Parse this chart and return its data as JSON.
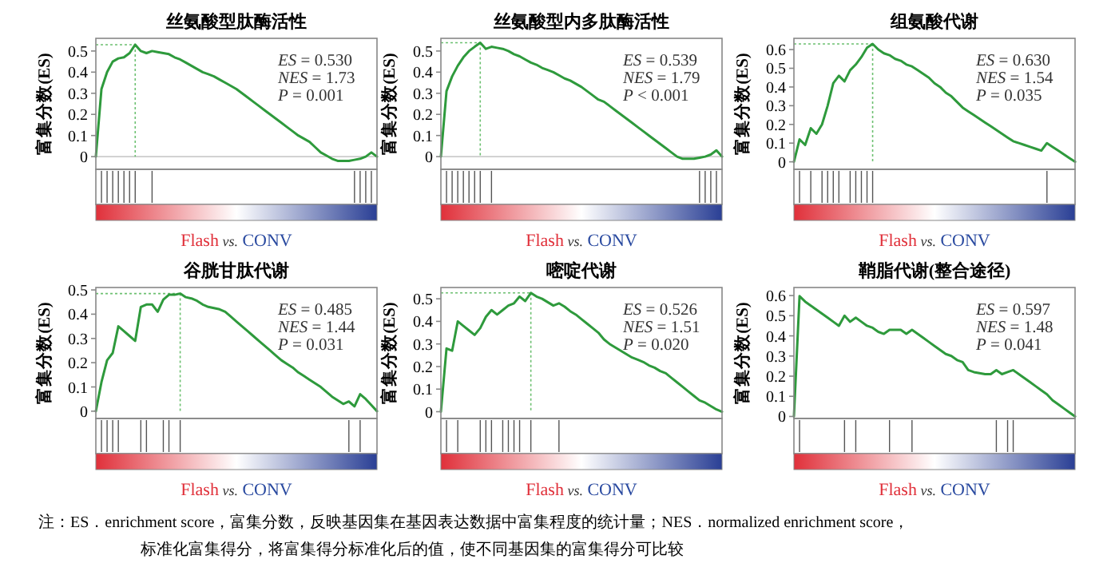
{
  "chart_data": [
    {
      "type": "line",
      "title": "丝氨酸型肽酶活性",
      "ylabel": "富集分数(ES)",
      "xlabel": "Flash vs. CONV",
      "ylim": [
        -0.06,
        0.56
      ],
      "yticks": [
        0,
        0.1,
        0.2,
        0.3,
        0.4,
        0.5
      ],
      "tick_labels": "y",
      "categories": [
        null,
        null,
        null,
        null,
        null,
        null,
        null,
        null,
        null,
        null,
        null,
        null,
        null,
        null,
        null,
        null,
        null,
        null,
        null,
        null,
        null,
        null,
        null,
        null,
        null,
        null,
        null,
        null,
        null,
        null,
        null,
        null,
        null,
        null,
        null,
        null,
        null,
        null,
        null,
        null,
        null,
        null,
        null,
        null,
        null,
        null,
        null,
        null,
        null,
        null,
        null
      ],
      "series": [
        {
          "color": "#2e9a3c",
          "values": [
            0,
            0.32,
            0.4,
            0.45,
            0.465,
            0.47,
            0.49,
            0.53,
            0.5,
            0.49,
            0.5,
            0.495,
            0.49,
            0.485,
            0.47,
            0.46,
            0.445,
            0.43,
            0.415,
            0.4,
            0.39,
            0.38,
            0.365,
            0.35,
            0.335,
            0.32,
            0.3,
            0.28,
            0.26,
            0.24,
            0.22,
            0.2,
            0.18,
            0.16,
            0.14,
            0.12,
            0.1,
            0.085,
            0.07,
            0.045,
            0.02,
            0.005,
            -0.01,
            -0.02,
            -0.02,
            -0.02,
            -0.015,
            -0.01,
            0,
            0.02,
            0
          ]
        }
      ],
      "ref_lines": [
        {
          "axis": "y",
          "value": 0,
          "color": "#cccccc",
          "line_style": "solid"
        },
        {
          "axis": "y",
          "value": 0.53,
          "color": "#6cc070",
          "line_style": "dotted"
        }
      ],
      "annotations": [
        "ES = 0.530",
        "NES = 1.73",
        "P = 0.001"
      ]
    },
    {
      "type": "line",
      "title": "丝氨酸型内多肽酶活性",
      "ylabel": "富集分数(ES)",
      "xlabel": "Flash vs. CONV",
      "ylim": [
        -0.06,
        0.56
      ],
      "yticks": [
        0,
        0.1,
        0.2,
        0.3,
        0.4,
        0.5
      ],
      "tick_labels": "y",
      "categories": [
        null,
        null,
        null,
        null,
        null,
        null,
        null,
        null,
        null,
        null,
        null,
        null,
        null,
        null,
        null,
        null,
        null,
        null,
        null,
        null,
        null,
        null,
        null,
        null,
        null,
        null,
        null,
        null,
        null,
        null,
        null,
        null,
        null,
        null,
        null,
        null,
        null,
        null,
        null,
        null,
        null,
        null,
        null,
        null,
        null,
        null,
        null,
        null,
        null,
        null,
        null
      ],
      "series": [
        {
          "color": "#2e9a3c",
          "values": [
            0,
            0.31,
            0.38,
            0.43,
            0.47,
            0.5,
            0.52,
            0.539,
            0.51,
            0.52,
            0.515,
            0.51,
            0.5,
            0.485,
            0.475,
            0.46,
            0.445,
            0.435,
            0.42,
            0.41,
            0.4,
            0.385,
            0.37,
            0.36,
            0.345,
            0.33,
            0.31,
            0.29,
            0.27,
            0.26,
            0.24,
            0.22,
            0.2,
            0.18,
            0.16,
            0.14,
            0.12,
            0.1,
            0.08,
            0.06,
            0.04,
            0.02,
            0,
            -0.01,
            -0.01,
            -0.01,
            -0.005,
            0,
            0.01,
            0.03,
            0
          ]
        }
      ],
      "ref_lines": [
        {
          "axis": "y",
          "value": 0,
          "color": "#cccccc",
          "line_style": "solid"
        },
        {
          "axis": "y",
          "value": 0.539,
          "color": "#6cc070",
          "line_style": "dotted"
        }
      ],
      "annotations": [
        "ES = 0.539",
        "NES = 1.79",
        "P < 0.001"
      ]
    },
    {
      "type": "line",
      "title": "组氨酸代谢",
      "ylabel": "富集分数(ES)",
      "xlabel": "Flash vs. CONV",
      "ylim": [
        -0.04,
        0.66
      ],
      "yticks": [
        0,
        0.1,
        0.2,
        0.3,
        0.4,
        0.5,
        0.6
      ],
      "tick_labels": "y",
      "categories": [
        null,
        null,
        null,
        null,
        null,
        null,
        null,
        null,
        null,
        null,
        null,
        null,
        null,
        null,
        null,
        null,
        null,
        null,
        null,
        null,
        null,
        null,
        null,
        null,
        null,
        null,
        null,
        null,
        null,
        null,
        null,
        null,
        null,
        null,
        null,
        null,
        null,
        null,
        null,
        null,
        null,
        null,
        null,
        null,
        null,
        null,
        null,
        null,
        null,
        null,
        null
      ],
      "series": [
        {
          "color": "#2e9a3c",
          "values": [
            0,
            0.12,
            0.09,
            0.18,
            0.15,
            0.2,
            0.3,
            0.42,
            0.46,
            0.43,
            0.49,
            0.52,
            0.56,
            0.61,
            0.63,
            0.6,
            0.58,
            0.57,
            0.55,
            0.54,
            0.52,
            0.51,
            0.49,
            0.47,
            0.45,
            0.42,
            0.4,
            0.37,
            0.35,
            0.32,
            0.29,
            0.27,
            0.25,
            0.23,
            0.21,
            0.19,
            0.17,
            0.15,
            0.13,
            0.11,
            0.1,
            0.09,
            0.08,
            0.07,
            0.06,
            0.1,
            0.08,
            0.06,
            0.04,
            0.02,
            0
          ]
        }
      ],
      "ref_lines": [
        {
          "axis": "y",
          "value": 0.63,
          "color": "#6cc070",
          "line_style": "dotted"
        }
      ],
      "annotations": [
        "ES = 0.630",
        "NES = 1.54",
        "P = 0.035"
      ]
    },
    {
      "type": "line",
      "title": "谷胱甘肽代谢",
      "ylabel": "富集分数(ES)",
      "xlabel": "Flash vs. CONV",
      "ylim": [
        -0.03,
        0.51
      ],
      "yticks": [
        0,
        0.1,
        0.2,
        0.3,
        0.4,
        0.5
      ],
      "tick_labels": "y",
      "categories": [
        null,
        null,
        null,
        null,
        null,
        null,
        null,
        null,
        null,
        null,
        null,
        null,
        null,
        null,
        null,
        null,
        null,
        null,
        null,
        null,
        null,
        null,
        null,
        null,
        null,
        null,
        null,
        null,
        null,
        null,
        null,
        null,
        null,
        null,
        null,
        null,
        null,
        null,
        null,
        null,
        null,
        null,
        null,
        null,
        null,
        null,
        null,
        null,
        null,
        null,
        null
      ],
      "series": [
        {
          "color": "#2e9a3c",
          "values": [
            0,
            0.12,
            0.21,
            0.24,
            0.35,
            0.33,
            0.31,
            0.29,
            0.43,
            0.44,
            0.44,
            0.41,
            0.46,
            0.48,
            0.48,
            0.485,
            0.47,
            0.465,
            0.455,
            0.44,
            0.43,
            0.425,
            0.42,
            0.41,
            0.39,
            0.37,
            0.35,
            0.33,
            0.31,
            0.29,
            0.27,
            0.25,
            0.23,
            0.21,
            0.195,
            0.18,
            0.16,
            0.145,
            0.13,
            0.115,
            0.1,
            0.08,
            0.06,
            0.045,
            0.03,
            0.04,
            0.02,
            0.07,
            0.05,
            0.025,
            0
          ]
        }
      ],
      "ref_lines": [
        {
          "axis": "y",
          "value": 0.485,
          "color": "#6cc070",
          "line_style": "dotted"
        }
      ],
      "annotations": [
        "ES = 0.485",
        "NES = 1.44",
        "P = 0.031"
      ]
    },
    {
      "type": "line",
      "title": "嘧啶代谢",
      "ylabel": "富集分数(ES)",
      "xlabel": "Flash vs. CONV",
      "ylim": [
        -0.03,
        0.55
      ],
      "yticks": [
        0,
        0.1,
        0.2,
        0.3,
        0.4,
        0.5
      ],
      "tick_labels": "y",
      "categories": [
        null,
        null,
        null,
        null,
        null,
        null,
        null,
        null,
        null,
        null,
        null,
        null,
        null,
        null,
        null,
        null,
        null,
        null,
        null,
        null,
        null,
        null,
        null,
        null,
        null,
        null,
        null,
        null,
        null,
        null,
        null,
        null,
        null,
        null,
        null,
        null,
        null,
        null,
        null,
        null,
        null,
        null,
        null,
        null,
        null,
        null,
        null,
        null,
        null,
        null,
        null
      ],
      "series": [
        {
          "color": "#2e9a3c",
          "values": [
            0,
            0.28,
            0.27,
            0.4,
            0.38,
            0.36,
            0.34,
            0.37,
            0.42,
            0.45,
            0.43,
            0.45,
            0.47,
            0.48,
            0.51,
            0.49,
            0.526,
            0.51,
            0.5,
            0.485,
            0.47,
            0.48,
            0.465,
            0.445,
            0.43,
            0.41,
            0.39,
            0.37,
            0.35,
            0.32,
            0.3,
            0.285,
            0.27,
            0.255,
            0.24,
            0.23,
            0.22,
            0.205,
            0.195,
            0.18,
            0.17,
            0.15,
            0.13,
            0.11,
            0.09,
            0.07,
            0.05,
            0.04,
            0.025,
            0.01,
            0
          ]
        }
      ],
      "ref_lines": [
        {
          "axis": "y",
          "value": 0.526,
          "color": "#6cc070",
          "line_style": "dotted"
        }
      ],
      "annotations": [
        "ES = 0.526",
        "NES = 1.51",
        "P = 0.020"
      ]
    },
    {
      "type": "line",
      "title": "鞘脂代谢(整合途径)",
      "ylabel": "富集分数(ES)",
      "xlabel": "Flash vs. CONV",
      "ylim": [
        -0.01,
        0.64
      ],
      "yticks": [
        0,
        0.1,
        0.2,
        0.3,
        0.4,
        0.5,
        0.6
      ],
      "tick_labels": "y",
      "categories": [
        null,
        null,
        null,
        null,
        null,
        null,
        null,
        null,
        null,
        null,
        null,
        null,
        null,
        null,
        null,
        null,
        null,
        null,
        null,
        null,
        null,
        null,
        null,
        null,
        null,
        null,
        null,
        null,
        null,
        null,
        null,
        null,
        null,
        null,
        null,
        null,
        null,
        null,
        null,
        null,
        null,
        null,
        null,
        null,
        null,
        null,
        null,
        null,
        null,
        null,
        null
      ],
      "series": [
        {
          "color": "#2e9a3c",
          "values": [
            0,
            0.597,
            0.57,
            0.55,
            0.53,
            0.51,
            0.49,
            0.47,
            0.45,
            0.5,
            0.47,
            0.49,
            0.47,
            0.45,
            0.44,
            0.42,
            0.41,
            0.43,
            0.43,
            0.43,
            0.41,
            0.43,
            0.41,
            0.39,
            0.37,
            0.35,
            0.33,
            0.31,
            0.3,
            0.28,
            0.27,
            0.23,
            0.22,
            0.215,
            0.21,
            0.21,
            0.23,
            0.21,
            0.22,
            0.23,
            0.21,
            0.19,
            0.17,
            0.15,
            0.13,
            0.11,
            0.08,
            0.06,
            0.04,
            0.02,
            0
          ]
        }
      ],
      "annotations": [
        "ES = 0.597",
        "NES = 1.48",
        "P = 0.041",
        "注：ES．enrichment score，富集分数，反映基因集在基因表达数据中富集程度的统计量；NES．normalized enrichment score，",
        "标准化富集得分，将富集得分标准化后的值，使不同基因集的富集得分可比较"
      ]
    }
  ]
}
